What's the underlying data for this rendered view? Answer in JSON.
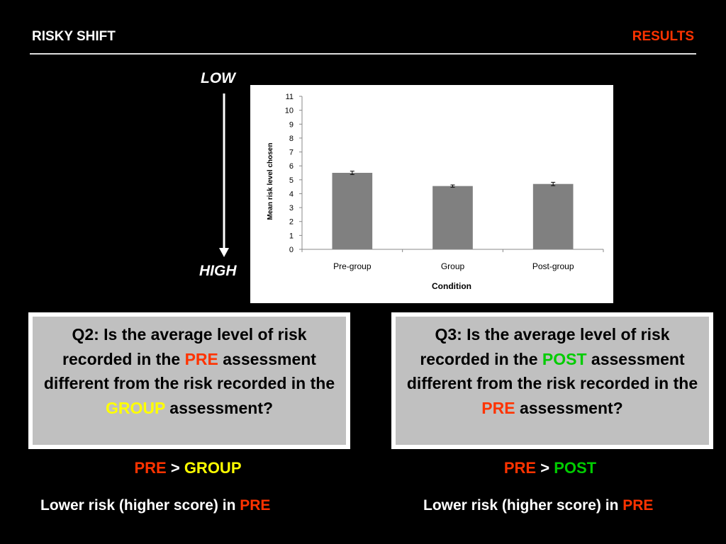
{
  "header": {
    "title": "RISKY SHIFT",
    "section": "RESULTS"
  },
  "scale": {
    "top_label": "LOW",
    "bottom_label": "HIGH"
  },
  "colors": {
    "red": "#ff3300",
    "yellow": "#ffff00",
    "green": "#00cc00",
    "bar": "#808080"
  },
  "chart_data": {
    "type": "bar",
    "categories": [
      "Pre-group",
      "Group",
      "Post-group"
    ],
    "values": [
      5.5,
      4.55,
      4.7
    ],
    "error": [
      0.12,
      0.08,
      0.12
    ],
    "xlabel": "Condition",
    "ylabel": "Mean risk level chosen",
    "ylim": [
      0,
      11
    ],
    "yticks": [
      0,
      1,
      2,
      3,
      4,
      5,
      6,
      7,
      8,
      9,
      10,
      11
    ],
    "grid": false,
    "legend": "none"
  },
  "q2": {
    "part1": "Q2: Is the average level of risk recorded in the ",
    "hl1": "PRE",
    "part2": " assessment different from the risk recorded in the ",
    "hl2": "GROUP",
    "part3": " assessment?"
  },
  "q3": {
    "part1": "Q3: Is the average level of risk recorded in the ",
    "hl1": "POST",
    "part2": " assessment different from the risk recorded in the ",
    "hl2": "PRE",
    "part3": " assessment?"
  },
  "answer2": {
    "left": "PRE",
    "op": " > ",
    "right": "GROUP"
  },
  "answer3": {
    "left": "PRE",
    "op": " > ",
    "right": "POST"
  },
  "conclusion2": {
    "text": "Lower risk (higher score) in ",
    "hl": "PRE"
  },
  "conclusion3": {
    "text": "Lower risk (higher score) in ",
    "hl": "PRE"
  }
}
